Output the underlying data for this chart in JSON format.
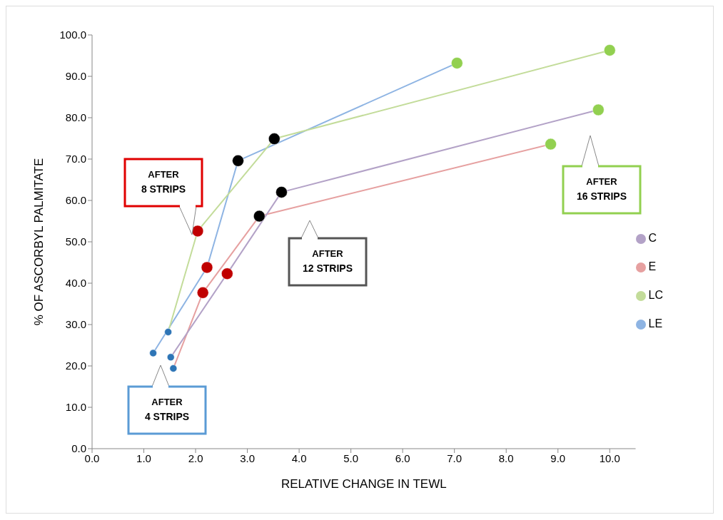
{
  "chart_data": {
    "type": "line",
    "xlabel": "RELATIVE CHANGE IN TEWL",
    "ylabel": "% OF ASCORBYL PALMITATE",
    "series": [
      {
        "name": "LE",
        "color": "#8eb4e3",
        "x": [
          1.18,
          2.22,
          2.82,
          7.05
        ],
        "values": [
          23.1,
          43.8,
          69.6,
          93.2
        ],
        "colors": [
          "#2e75b6",
          "#c00000",
          "#000000",
          "#92d050"
        ]
      },
      {
        "name": "E",
        "color": "#e6a0a0",
        "x": [
          1.57,
          2.14,
          3.23,
          8.86
        ],
        "values": [
          19.4,
          37.7,
          56.2,
          73.6
        ],
        "colors": [
          "#2e75b6",
          "#c00000",
          "#000000",
          "#92d050"
        ]
      },
      {
        "name": "LC",
        "color": "#c3dc9a",
        "x": [
          1.47,
          2.04,
          3.52,
          10.0
        ],
        "values": [
          28.2,
          52.6,
          74.9,
          96.3
        ],
        "colors": [
          "#2e75b6",
          "#c00000",
          "#000000",
          "#92d050"
        ]
      },
      {
        "name": "C",
        "color": "#b3a2c7",
        "x": [
          1.52,
          2.61,
          3.66,
          9.78
        ],
        "values": [
          22.1,
          42.3,
          62.0,
          81.9
        ],
        "colors": [
          "#2e75b6",
          "#c00000",
          "#000000",
          "#92d050"
        ]
      }
    ],
    "xlim": [
      0,
      10.5
    ],
    "xticks": [
      {
        "value": 0,
        "label": "0.0"
      },
      {
        "value": 1,
        "label": "1.0"
      },
      {
        "value": 2,
        "label": "2.0"
      },
      {
        "value": 3,
        "label": "3.0"
      },
      {
        "value": 4,
        "label": "4.0"
      },
      {
        "value": 5,
        "label": "5.0"
      },
      {
        "value": 6,
        "label": "6.0"
      },
      {
        "value": 7,
        "label": "7.0"
      },
      {
        "value": 8,
        "label": "8.0"
      },
      {
        "value": 9,
        "label": "9.0"
      },
      {
        "value": 10,
        "label": "10.0"
      }
    ],
    "ylim": [
      0,
      100
    ],
    "yticks": [
      {
        "value": 0,
        "label": "0.0"
      },
      {
        "value": 10,
        "label": "10.0"
      },
      {
        "value": 20,
        "label": "20.0"
      },
      {
        "value": 30,
        "label": "30.0"
      },
      {
        "value": 40,
        "label": "40.0"
      },
      {
        "value": 50,
        "label": "50.0"
      },
      {
        "value": 60,
        "label": "60.0"
      },
      {
        "value": 70,
        "label": "70.0"
      },
      {
        "value": 80,
        "label": "80.0"
      },
      {
        "value": 90,
        "label": "90.0"
      },
      {
        "value": 100,
        "label": "100.0"
      }
    ],
    "annotations": [
      "AFTER 4 STRIPS",
      "AFTER 8 STRIPS",
      "AFTER 12 STRIPS",
      "AFTER 16 STRIPS"
    ],
    "legend": "right",
    "grid": false,
    "marker": "circle",
    "line_style": "solid"
  }
}
